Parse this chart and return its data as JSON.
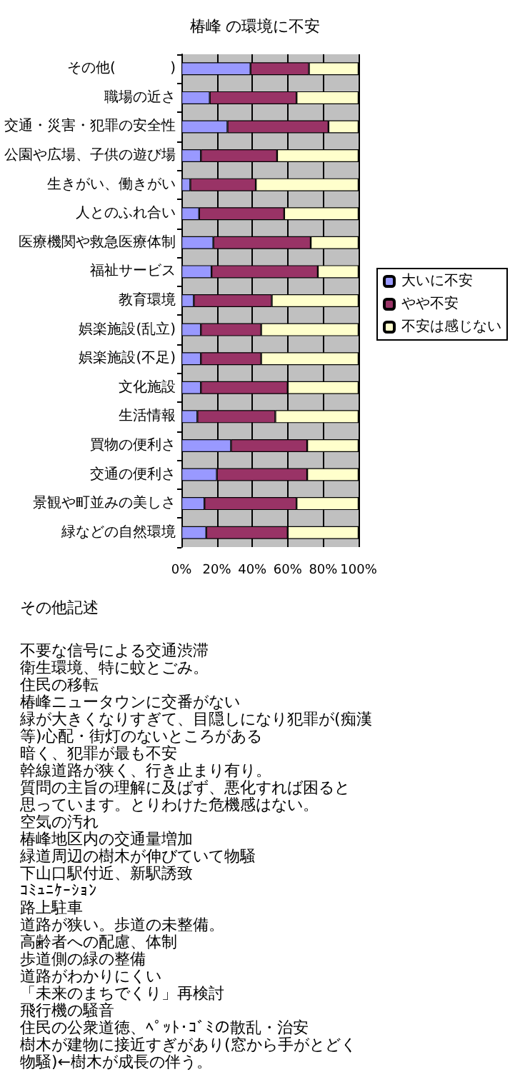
{
  "chart_data": {
    "type": "bar",
    "orientation": "horizontal",
    "stacked": true,
    "title": "椿峰 の環境に不安",
    "categories": [
      "その他(            )",
      "職場の近さ",
      "交通・災害・犯罪の安全性",
      "公園や広場、子供の遊び場",
      "生きがい、働きがい",
      "人とのふれ合い",
      "医療機関や救急医療体制",
      "福祉サービス",
      "教育環境",
      "娯楽施設(乱立)",
      "娯楽施設(不足)",
      "文化施設",
      "生活情報",
      "買物の便利さ",
      "交通の便利さ",
      "景観や町並みの美しさ",
      "緑などの自然環境"
    ],
    "series": [
      {
        "name": "大いに不安",
        "color": "#9999ff",
        "values": [
          39,
          16,
          26,
          11,
          5,
          10,
          18,
          17,
          7,
          11,
          11,
          11,
          9,
          28,
          20,
          13,
          14
        ]
      },
      {
        "name": "やや不安",
        "color": "#993366",
        "values": [
          33,
          49,
          57,
          43,
          37,
          48,
          55,
          60,
          44,
          34,
          34,
          49,
          44,
          43,
          51,
          52,
          46
        ]
      },
      {
        "name": "不安は感じない",
        "color": "#ffffcc",
        "values": [
          28,
          35,
          17,
          46,
          58,
          42,
          27,
          23,
          49,
          55,
          55,
          40,
          47,
          29,
          29,
          35,
          40
        ]
      }
    ],
    "xlim": [
      0,
      100
    ],
    "xticks": [
      {
        "value": 0,
        "label": "0%"
      },
      {
        "value": 20,
        "label": "20%"
      },
      {
        "value": 40,
        "label": "40%"
      },
      {
        "value": 60,
        "label": "60%"
      },
      {
        "value": 80,
        "label": "80%"
      },
      {
        "value": 100,
        "label": "100%"
      }
    ],
    "grid": "x",
    "legend": "right",
    "annotations": [
      "その他記述",
      "不要な信号による交通渋滞",
      "衛生環境、特に蚊とごみ。",
      "住民の移転",
      "椿峰ニュータウンに交番がない",
      "緑が大きくなりすぎて、目隠しになり犯罪が(痴漢",
      "等)心配・街灯のないところがある",
      "暗く、犯罪が最も不安",
      "幹線道路が狭く、行き止まり有り。",
      "質問の主旨の理解に及ばず、悪化すれば困ると",
      "思っています。とりわけた危機感はない。",
      "空気の汚れ",
      "椿峰地区内の交通量増加",
      "緑道周辺の樹木が伸びていて物騒",
      "下山口駅付近、新駅誘致",
      "ｺﾐｭﾆｹｰｼｮﾝ",
      "路上駐車",
      "道路が狭い。歩道の未整備。",
      "高齢者への配慮、体制",
      "歩道側の緑の整備",
      "道路がわかりにくい",
      "「未来のまちでくり」再検討",
      "飛行機の騒音",
      "住民の公衆道徳、ﾍﾟｯﾄ･ｺﾞﾐの散乱・治安",
      "樹木が建物に接近すぎがあり(窓から手がとどく",
      "物騒)←樹木が成長の伴う。"
    ]
  }
}
